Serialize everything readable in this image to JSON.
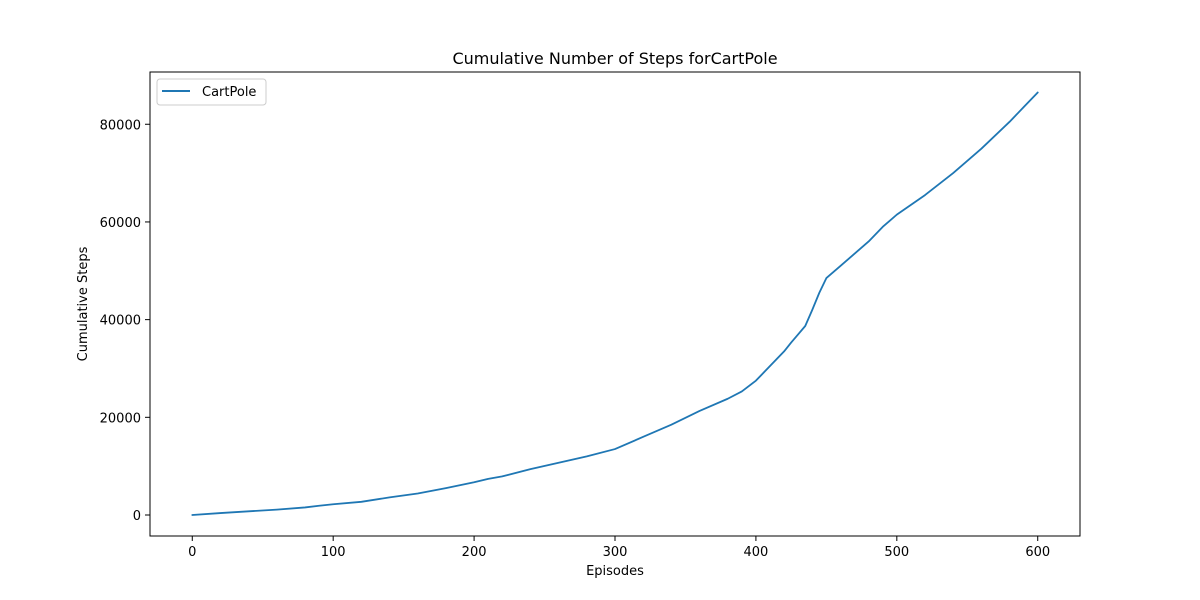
{
  "chart_data": {
    "type": "line",
    "title": "Cumulative Number of Steps forCartPole",
    "xlabel": "Episodes",
    "ylabel": "Cumulative Steps",
    "xlim": [
      -30,
      630
    ],
    "ylim": [
      -4300,
      90700
    ],
    "xticks": [
      0,
      100,
      200,
      300,
      400,
      500,
      600
    ],
    "yticks": [
      0,
      20000,
      40000,
      60000,
      80000
    ],
    "grid": false,
    "legend": {
      "placement": "top-left",
      "entries": [
        "CartPole"
      ]
    },
    "series": [
      {
        "name": "CartPole",
        "color": "#1f77b4",
        "x": [
          0,
          20,
          40,
          60,
          80,
          90,
          100,
          120,
          140,
          160,
          180,
          200,
          210,
          220,
          240,
          260,
          280,
          300,
          320,
          340,
          360,
          380,
          390,
          400,
          410,
          420,
          425,
          430,
          435,
          440,
          445,
          450,
          460,
          470,
          480,
          490,
          500,
          520,
          540,
          560,
          580,
          590,
          600
        ],
        "y": [
          0,
          400,
          750,
          1100,
          1550,
          1900,
          2200,
          2700,
          3600,
          4400,
          5500,
          6700,
          7400,
          7900,
          9400,
          10700,
          12000,
          13500,
          16000,
          18500,
          21300,
          23800,
          25300,
          27500,
          30500,
          33500,
          35300,
          37000,
          38700,
          42000,
          45500,
          48500,
          51000,
          53500,
          56000,
          59000,
          61500,
          65500,
          70000,
          75000,
          80500,
          83500,
          86500
        ]
      }
    ]
  }
}
